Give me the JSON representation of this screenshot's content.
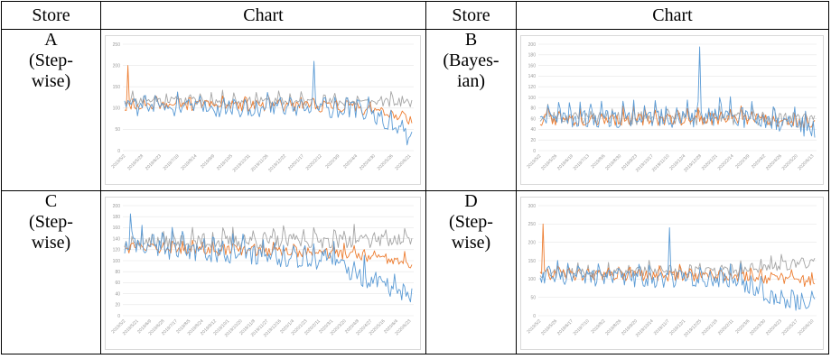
{
  "headers": [
    "Store",
    "Chart",
    "Store",
    "Chart"
  ],
  "stores": [
    {
      "letter": "A",
      "method_lines": [
        "(Step-",
        "wise)"
      ]
    },
    {
      "letter": "B",
      "method_lines": [
        "(Bayes-",
        "ian)"
      ]
    },
    {
      "letter": "C",
      "method_lines": [
        "(Step-",
        "wise)"
      ]
    },
    {
      "letter": "D",
      "method_lines": [
        "(Step-",
        "wise)"
      ]
    }
  ],
  "series_colors": {
    "blue": "#5b9bd5",
    "orange": "#ed7d31",
    "gray": "#a5a5a5"
  },
  "chart_data": [
    {
      "type": "line",
      "store": "A",
      "yticks": [
        "0",
        "50",
        "100",
        "150",
        "200",
        "250"
      ],
      "ylim": [
        0,
        250
      ],
      "xticks": [
        "2019/5/2",
        "2019/5/28",
        "2019/6/23",
        "2019/7/19",
        "2019/8/14",
        "2019/9/9",
        "2019/10/5",
        "2019/10/31",
        "2019/11/26",
        "2019/12/22",
        "2020/1/17",
        "2020/2/12",
        "2020/3/9",
        "2020/4/4",
        "2020/4/30",
        "2020/5/26",
        "2020/6/21"
      ],
      "n": 180,
      "seed": 11,
      "series": [
        {
          "color": "blue",
          "segments": [
            [
              0,
              105
            ],
            [
              0.8,
              100
            ],
            [
              0.85,
              90
            ],
            [
              1,
              30
            ]
          ],
          "amp": 24,
          "spike_at": 0.66,
          "spike": 210
        },
        {
          "color": "orange",
          "segments": [
            [
              0,
              110
            ],
            [
              0.8,
              105
            ],
            [
              1,
              75
            ]
          ],
          "amp": 16,
          "spike_at": 0.01,
          "spike": 200
        },
        {
          "color": "gray",
          "segments": [
            [
              0,
              120
            ],
            [
              1,
              115
            ]
          ],
          "amp": 14
        }
      ]
    },
    {
      "type": "line",
      "store": "B",
      "yticks": [
        "0",
        "20",
        "40",
        "60",
        "80",
        "100",
        "120",
        "140",
        "160",
        "180",
        "200"
      ],
      "ylim": [
        0,
        200
      ],
      "xticks": [
        "2019/5/2",
        "2019/5/26",
        "2019/6/19",
        "2019/7/13",
        "2019/8/6",
        "2019/8/30",
        "2019/9/23",
        "2019/10/17",
        "2019/11/10",
        "2019/12/4",
        "2019/12/28",
        "2020/1/21",
        "2020/2/14",
        "2020/3/9",
        "2020/4/2",
        "2020/4/26",
        "2020/5/20",
        "2020/6/13"
      ],
      "n": 180,
      "seed": 23,
      "series": [
        {
          "color": "blue",
          "segments": [
            [
              0,
              65
            ],
            [
              0.8,
              65
            ],
            [
              1,
              45
            ]
          ],
          "amp": 22,
          "spike_at": 0.58,
          "spike": 195
        },
        {
          "color": "orange",
          "segments": [
            [
              0,
              60
            ],
            [
              0.8,
              62
            ],
            [
              1,
              50
            ]
          ],
          "amp": 14
        },
        {
          "color": "gray",
          "segments": [
            [
              0,
              65
            ],
            [
              1,
              62
            ]
          ],
          "amp": 16
        }
      ]
    },
    {
      "type": "line",
      "store": "C",
      "yticks": [
        "0",
        "20",
        "40",
        "60",
        "80",
        "100",
        "120",
        "140",
        "160",
        "180",
        "200"
      ],
      "ylim": [
        0,
        200
      ],
      "xticks": [
        "2019/5/2",
        "2019/5/21",
        "2019/6/9",
        "2019/6/28",
        "2019/7/17",
        "2019/8/5",
        "2019/8/24",
        "2019/9/12",
        "2019/10/1",
        "2019/10/20",
        "2019/11/8",
        "2019/11/27",
        "2019/12/16",
        "2020/1/4",
        "2020/1/23",
        "2020/2/11",
        "2020/3/1",
        "2020/3/20",
        "2020/4/8",
        "2020/4/27",
        "2020/5/16",
        "2020/6/4",
        "2020/6/23"
      ],
      "n": 200,
      "seed": 37,
      "series": [
        {
          "color": "blue",
          "segments": [
            [
              0,
              130
            ],
            [
              0.7,
              105
            ],
            [
              0.85,
              70
            ],
            [
              1,
              40
            ]
          ],
          "amp": 22,
          "spike_at": 0.02,
          "spike": 185
        },
        {
          "color": "orange",
          "segments": [
            [
              0,
              125
            ],
            [
              0.75,
              115
            ],
            [
              1,
              95
            ]
          ],
          "amp": 12
        },
        {
          "color": "gray",
          "segments": [
            [
              0,
              135
            ],
            [
              1,
              140
            ]
          ],
          "amp": 16
        }
      ]
    },
    {
      "type": "line",
      "store": "D",
      "yticks": [
        "0",
        "50",
        "100",
        "150",
        "200",
        "250",
        "300"
      ],
      "ylim": [
        0,
        300
      ],
      "xticks": [
        "2019/5/2",
        "2019/5/26",
        "2019/6/17",
        "2019/7/10",
        "2019/8/2",
        "2019/8/26",
        "2019/9/20",
        "2019/10/14",
        "2019/11/7",
        "2019/12/1",
        "2019/12/25",
        "2020/1/18",
        "2020/2/11",
        "2020/3/6",
        "2020/3/30",
        "2020/4/23",
        "2020/5/17",
        "2020/6/10"
      ],
      "n": 190,
      "seed": 53,
      "series": [
        {
          "color": "blue",
          "segments": [
            [
              0,
              110
            ],
            [
              0.72,
              100
            ],
            [
              0.85,
              55
            ],
            [
              1,
              30
            ]
          ],
          "amp": 28,
          "spike_at": 0.47,
          "spike": 240
        },
        {
          "color": "orange",
          "segments": [
            [
              0,
              115
            ],
            [
              0.75,
              110
            ],
            [
              1,
              95
            ]
          ],
          "amp": 18,
          "spike_at": 0.01,
          "spike": 250
        },
        {
          "color": "gray",
          "segments": [
            [
              0,
              120
            ],
            [
              0.75,
              125
            ],
            [
              1,
              150
            ]
          ],
          "amp": 18
        }
      ]
    }
  ]
}
